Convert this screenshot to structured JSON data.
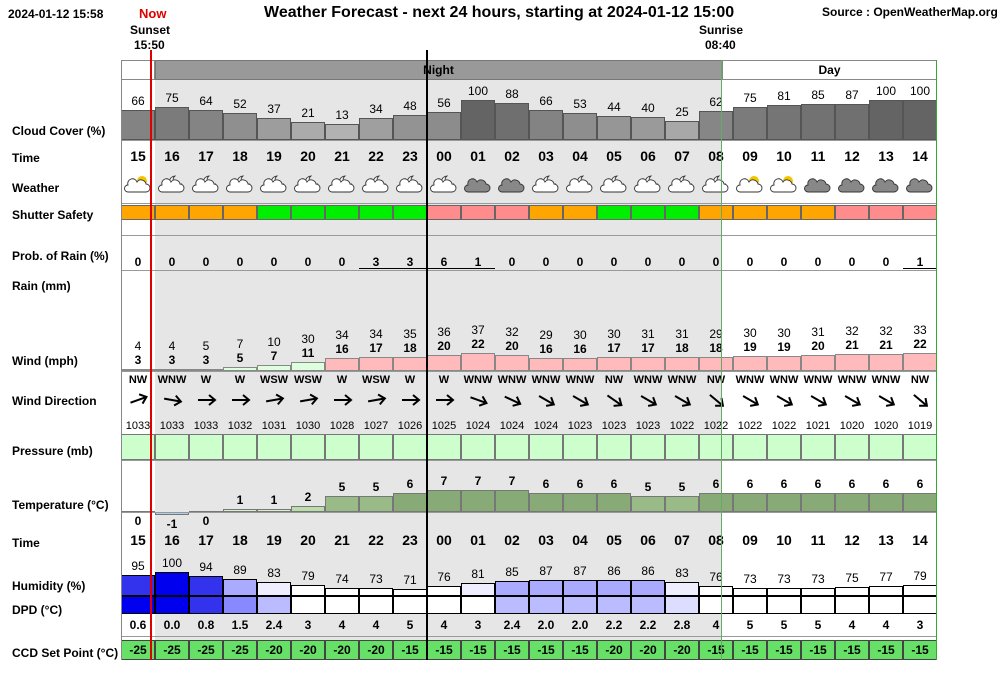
{
  "header": {
    "timestamp": "2024-01-12 15:58",
    "now_label": "Now",
    "title": "Weather Forecast - next 24 hours, starting at 2024-01-12 15:00",
    "source": "Source : OpenWeatherMap.org",
    "sunset_label": "Sunset",
    "sunset_time": "15:50",
    "sunrise_label": "Sunrise",
    "sunrise_time": "08:40",
    "night_label": "Night",
    "day_label": "Day"
  },
  "labels": {
    "cloud": "Cloud Cover (%)",
    "time": "Time",
    "weather": "Weather",
    "shutter": "Shutter Safety",
    "rainprob": "Prob. of Rain (%)",
    "rain": "Rain (mm)",
    "wind": "Wind (mph)",
    "winddir": "Wind Direction",
    "pressure": "Pressure (mb)",
    "temp": "Temperature (°C)",
    "time2": "Time",
    "humidity": "Humidity (%)",
    "dpd": "DPD (°C)",
    "ccd": "CCD Set Point (°C)"
  },
  "colors": {
    "night_bg": "#e6e6e6",
    "shutter_orange": "#ffa500",
    "shutter_green": "#00ee00",
    "shutter_pink": "#ff8c8c",
    "now_line": "#e00000",
    "ccd_green": "#66e066",
    "pressure_green": "#ccffcc",
    "temp_green": "#88aa77"
  },
  "hours": [
    "15",
    "16",
    "17",
    "18",
    "19",
    "20",
    "21",
    "22",
    "23",
    "00",
    "01",
    "02",
    "03",
    "04",
    "05",
    "06",
    "07",
    "08",
    "09",
    "10",
    "11",
    "12",
    "13",
    "14"
  ],
  "cloud": [
    66,
    75,
    64,
    52,
    37,
    21,
    13,
    34,
    48,
    56,
    100,
    88,
    66,
    53,
    44,
    40,
    25,
    62,
    75,
    81,
    85,
    87,
    100,
    100
  ],
  "weather_icons": [
    "partly-cloudy-day-icon",
    "partly-cloudy-night-icon",
    "partly-cloudy-night-icon",
    "partly-cloudy-night-icon",
    "partly-cloudy-night-icon",
    "partly-cloudy-night-icon",
    "partly-cloudy-night-icon",
    "partly-cloudy-night-icon",
    "partly-cloudy-night-icon",
    "partly-cloudy-night-icon",
    "cloudy-icon",
    "cloudy-icon",
    "partly-cloudy-night-icon",
    "partly-cloudy-night-icon",
    "partly-cloudy-night-icon",
    "partly-cloudy-night-icon",
    "partly-cloudy-night-icon",
    "partly-cloudy-night-icon",
    "partly-cloudy-day-icon",
    "partly-cloudy-day-icon",
    "cloudy-icon",
    "cloudy-icon",
    "cloudy-icon",
    "cloudy-icon"
  ],
  "shutter": [
    "orange",
    "orange",
    "orange",
    "orange",
    "green",
    "green",
    "green",
    "green",
    "green",
    "pink",
    "pink",
    "pink",
    "orange",
    "orange",
    "green",
    "green",
    "green",
    "orange",
    "orange",
    "orange",
    "orange",
    "pink",
    "pink",
    "pink"
  ],
  "rain_prob": [
    "0",
    "0",
    "0",
    "0",
    "0",
    "0",
    "0",
    "3",
    "3",
    "6",
    "1",
    "0",
    "0",
    "0",
    "0",
    "0",
    "0",
    "0",
    "0",
    "0",
    "0",
    "0",
    "0",
    "1"
  ],
  "wind": [
    {
      "gust": "4",
      "speed": "3"
    },
    {
      "gust": "4",
      "speed": "3"
    },
    {
      "gust": "5",
      "speed": "3"
    },
    {
      "gust": "7",
      "speed": "5"
    },
    {
      "gust": "10",
      "speed": "7"
    },
    {
      "gust": "30",
      "speed": "11"
    },
    {
      "gust": "34",
      "speed": "16"
    },
    {
      "gust": "34",
      "speed": "17"
    },
    {
      "gust": "35",
      "speed": "18"
    },
    {
      "gust": "36",
      "speed": "20"
    },
    {
      "gust": "37",
      "speed": "22"
    },
    {
      "gust": "32",
      "speed": "20"
    },
    {
      "gust": "29",
      "speed": "16"
    },
    {
      "gust": "30",
      "speed": "16"
    },
    {
      "gust": "30",
      "speed": "17"
    },
    {
      "gust": "31",
      "speed": "17"
    },
    {
      "gust": "31",
      "speed": "18"
    },
    {
      "gust": "29",
      "speed": "18"
    },
    {
      "gust": "30",
      "speed": "19"
    },
    {
      "gust": "30",
      "speed": "19"
    },
    {
      "gust": "31",
      "speed": "20"
    },
    {
      "gust": "32",
      "speed": "21"
    },
    {
      "gust": "32",
      "speed": "21"
    },
    {
      "gust": "33",
      "speed": "22"
    }
  ],
  "wind_dir": [
    "NW",
    "WNW",
    "W",
    "W",
    "WSW",
    "WSW",
    "W",
    "WSW",
    "W",
    "W",
    "WNW",
    "WNW",
    "WNW",
    "WNW",
    "NW",
    "WNW",
    "WNW",
    "NW",
    "WNW",
    "WNW",
    "WNW",
    "WNW",
    "WNW",
    "NW"
  ],
  "wind_dir_deg": [
    -20,
    10,
    0,
    0,
    -10,
    -10,
    0,
    -10,
    0,
    0,
    20,
    25,
    30,
    30,
    35,
    30,
    30,
    40,
    30,
    30,
    30,
    30,
    30,
    40
  ],
  "pressure": [
    "1033",
    "1033",
    "1033",
    "1032",
    "1031",
    "1030",
    "1028",
    "1027",
    "1026",
    "1025",
    "1024",
    "1024",
    "1024",
    "1023",
    "1023",
    "1023",
    "1022",
    "1022",
    "1022",
    "1022",
    "1021",
    "1020",
    "1020",
    "1019"
  ],
  "temperature": [
    "0",
    "-1",
    "0",
    "1",
    "1",
    "2",
    "5",
    "5",
    "6",
    "7",
    "7",
    "7",
    "6",
    "6",
    "6",
    "5",
    "5",
    "6",
    "6",
    "6",
    "6",
    "6",
    "6",
    "6"
  ],
  "humidity": [
    "95",
    "100",
    "94",
    "89",
    "83",
    "79",
    "74",
    "73",
    "71",
    "76",
    "81",
    "85",
    "87",
    "87",
    "86",
    "86",
    "83",
    "76",
    "73",
    "73",
    "73",
    "75",
    "77",
    "79"
  ],
  "dpd": [
    "0.6",
    "0.0",
    "0.8",
    "1.5",
    "2.4",
    "3",
    "4",
    "4",
    "5",
    "4",
    "3",
    "2.4",
    "2.0",
    "2.0",
    "2.2",
    "2.2",
    "2.8",
    "4",
    "5",
    "5",
    "5",
    "4",
    "4",
    "3"
  ],
  "ccd": [
    "-25",
    "-25",
    "-25",
    "-25",
    "-20",
    "-20",
    "-20",
    "-20",
    "-15",
    "-15",
    "-15",
    "-15",
    "-15",
    "-15",
    "-20",
    "-20",
    "-20",
    "-15",
    "-15",
    "-15",
    "-15",
    "-15",
    "-15",
    "-15"
  ]
}
